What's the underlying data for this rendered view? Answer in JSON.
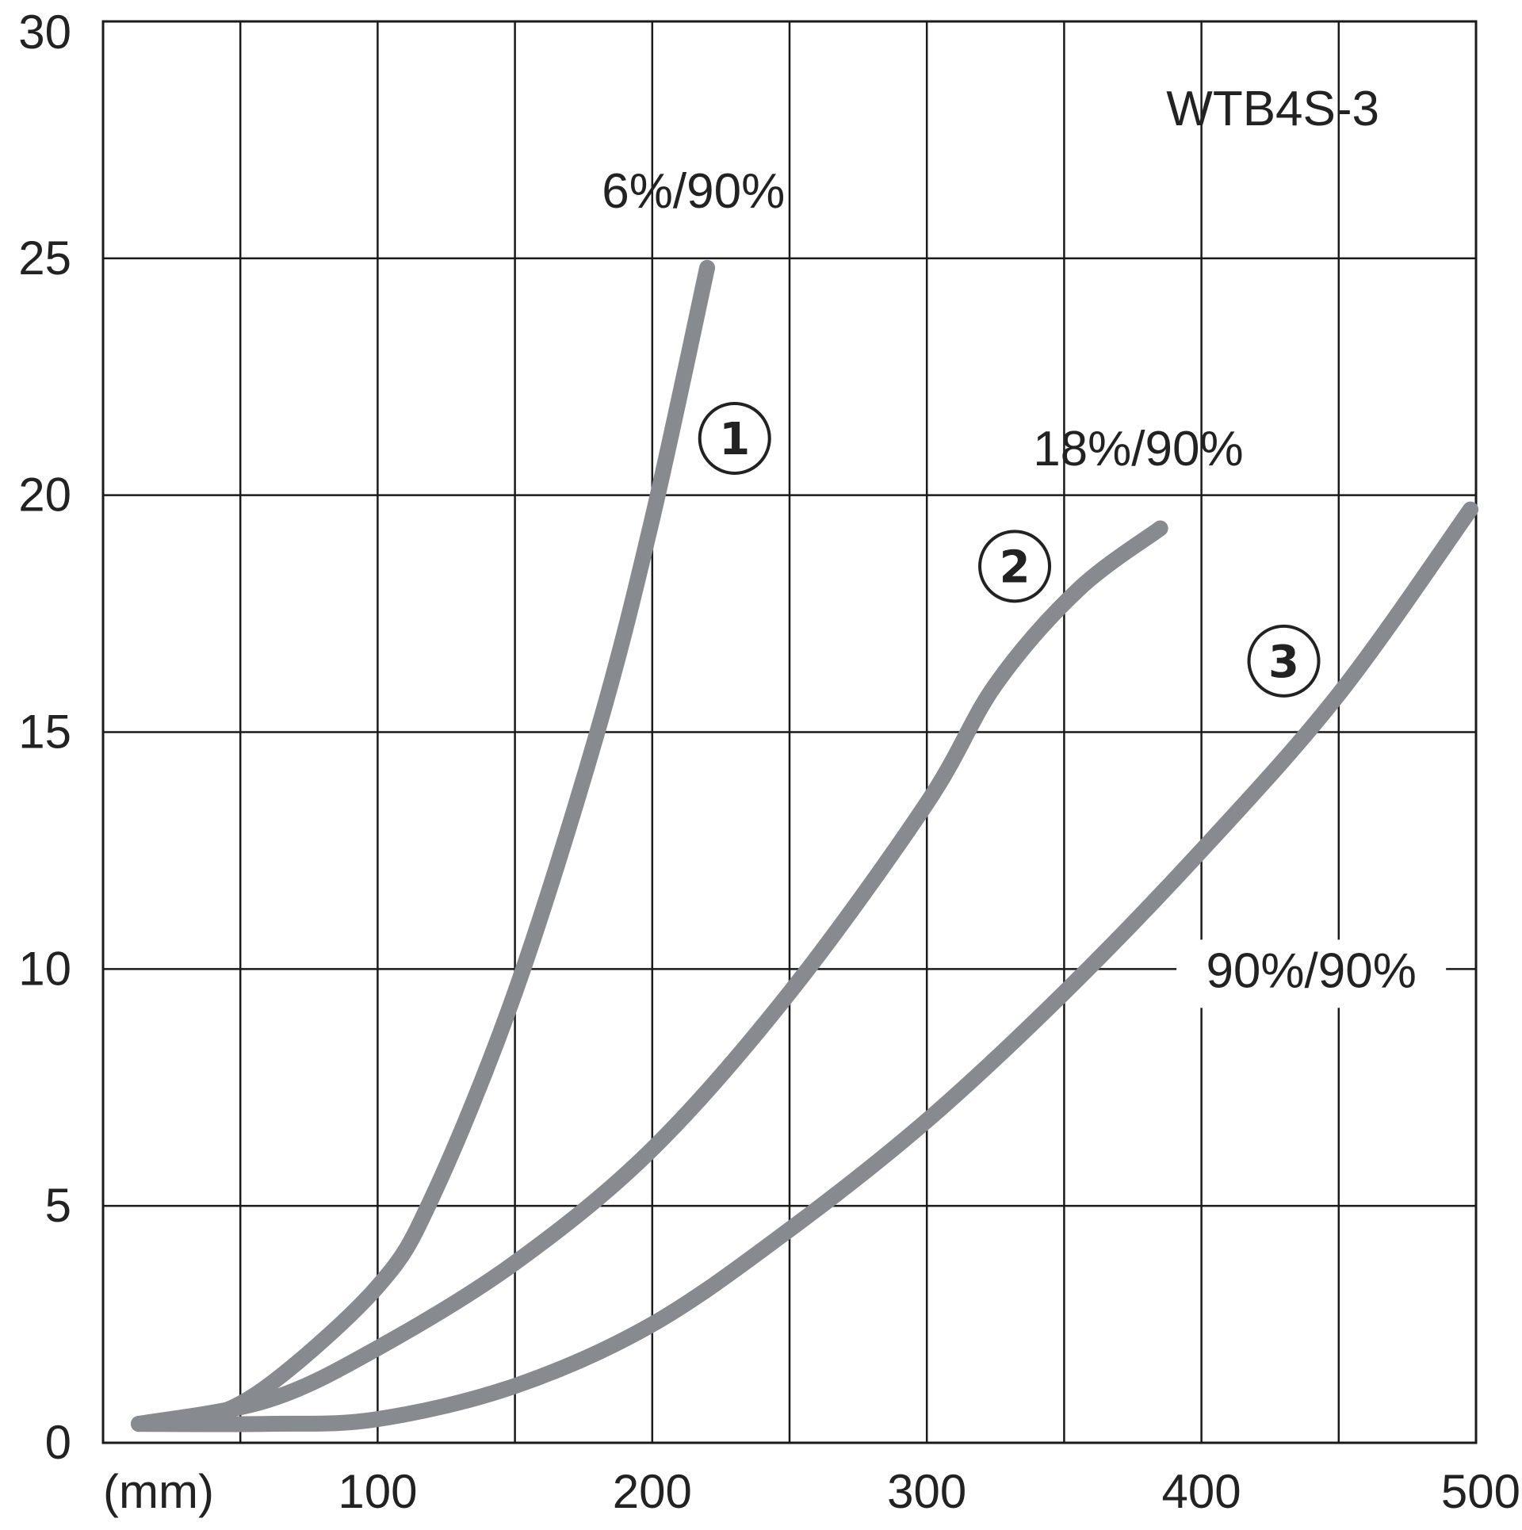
{
  "chart_data": {
    "type": "line",
    "model_label": "WTB4S-3",
    "x_unit_label": "(mm)",
    "xlim": [
      0,
      500
    ],
    "ylim": [
      0,
      30
    ],
    "x_ticks": [
      100,
      200,
      300,
      400,
      500
    ],
    "x_tick_labels": [
      "100",
      "200",
      "300",
      "400",
      "500"
    ],
    "y_ticks": [
      0,
      5,
      10,
      15,
      20,
      25,
      30
    ],
    "y_tick_labels": [
      "0",
      "5",
      "10",
      "15",
      "20",
      "25",
      "30"
    ],
    "x_grid": [
      0,
      50,
      100,
      150,
      200,
      250,
      300,
      350,
      400,
      450,
      500
    ],
    "grid": true,
    "line_color": "#878a8e",
    "series": [
      {
        "name": "6%/90%",
        "marker": "①",
        "x": [
          13,
          35,
          60,
          100,
          120,
          150,
          180,
          200,
          220
        ],
        "y": [
          0.4,
          0.5,
          1.2,
          3.3,
          5.2,
          9.5,
          15.0,
          19.5,
          24.8
        ]
      },
      {
        "name": "18%/90%",
        "marker": "②",
        "x": [
          13,
          60,
          100,
          150,
          200,
          250,
          300,
          325,
          355,
          385
        ],
        "y": [
          0.4,
          0.9,
          2.0,
          3.8,
          6.2,
          9.5,
          13.5,
          16.0,
          18.0,
          19.3
        ]
      },
      {
        "name": "90%/90%",
        "marker": "③",
        "x": [
          13,
          60,
          100,
          150,
          200,
          250,
          300,
          350,
          400,
          450,
          498
        ],
        "y": [
          0.4,
          0.4,
          0.5,
          1.2,
          2.5,
          4.5,
          6.8,
          9.5,
          12.5,
          15.8,
          19.7
        ]
      }
    ]
  }
}
